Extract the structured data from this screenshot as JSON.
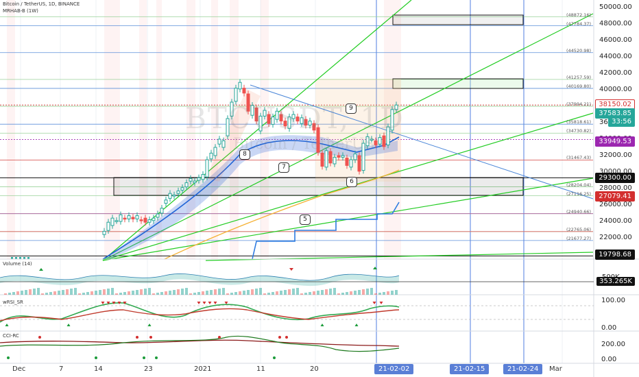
{
  "header": {
    "symbol_line": "Bitcoin / TetherUS, 1D, BINANCE",
    "indicator_line": "MRHAB-B (1W)"
  },
  "watermark": {
    "ticker": "BTCUSDT, 1D",
    "name": "Bitcoin / TetherUS"
  },
  "price_axis": {
    "ticks": [
      "50000.00",
      "48000.00",
      "46000.00",
      "44000.00",
      "42000.00",
      "40000.00",
      "38000.00",
      "36000.00",
      "34000.00",
      "32000.00",
      "30000.00",
      "28000.00",
      "26000.00",
      "24000.00",
      "22000.00"
    ]
  },
  "price_tags": [
    {
      "label": "38150.02",
      "bg": "#ffffff",
      "fg": "#d32f2f",
      "border": "#d32f2f"
    },
    {
      "label": "37583.85",
      "bg": "#26a69a",
      "fg": "#ffffff",
      "border": "#26a69a"
    },
    {
      "label": "33:56",
      "bg": "#26a69a",
      "fg": "#ffffff",
      "border": "#26a69a"
    },
    {
      "label": "33949.53",
      "bg": "#9c27b0",
      "fg": "#ffffff",
      "border": "#9c27b0"
    },
    {
      "label": "29300.00",
      "bg": "#111111",
      "fg": "#ffffff",
      "border": "#111111"
    },
    {
      "label": "27079.41",
      "bg": "#d32f2f",
      "fg": "#ffffff",
      "border": "#d32f2f"
    },
    {
      "label": "19798.68",
      "bg": "#111111",
      "fg": "#ffffff",
      "border": "#111111"
    }
  ],
  "level_labels": [
    "(48872.16)",
    "(47784.37)",
    "(44520.98)",
    "(41257.59)",
    "(40169.80)",
    "(37994.21)",
    "(35818.61)",
    "(34730.82)",
    "(31467.43)",
    "(28204.04)",
    "(27116.25)",
    "(24940.66)",
    "(22765.06)",
    "(21677.27)"
  ],
  "wave_labels": [
    "8",
    "9",
    "7",
    "6",
    "5"
  ],
  "volume_pane": {
    "title": "Volume (14)",
    "ticks": [
      "500K"
    ],
    "value": "353.265K"
  },
  "wrsi_pane": {
    "title": "wRSI_SR",
    "ticks": [
      "100.00",
      "0.00"
    ]
  },
  "cci_pane": {
    "title": "CCI-RC",
    "ticks": [
      "200.00",
      "0.00"
    ]
  },
  "time_axis": {
    "labels": [
      "Dec",
      "7",
      "14",
      "23",
      "2021",
      "11",
      "20",
      "Mar"
    ],
    "highlighted": [
      "21-02-02",
      "21-02-15",
      "21-02-24"
    ]
  },
  "colors": {
    "up": "#26a69a",
    "down": "#ef5350",
    "trendline": "#22cc22",
    "ema": "#1e63d6",
    "ema_slow": "#f5b133",
    "stepline": "#2d7be0"
  }
}
